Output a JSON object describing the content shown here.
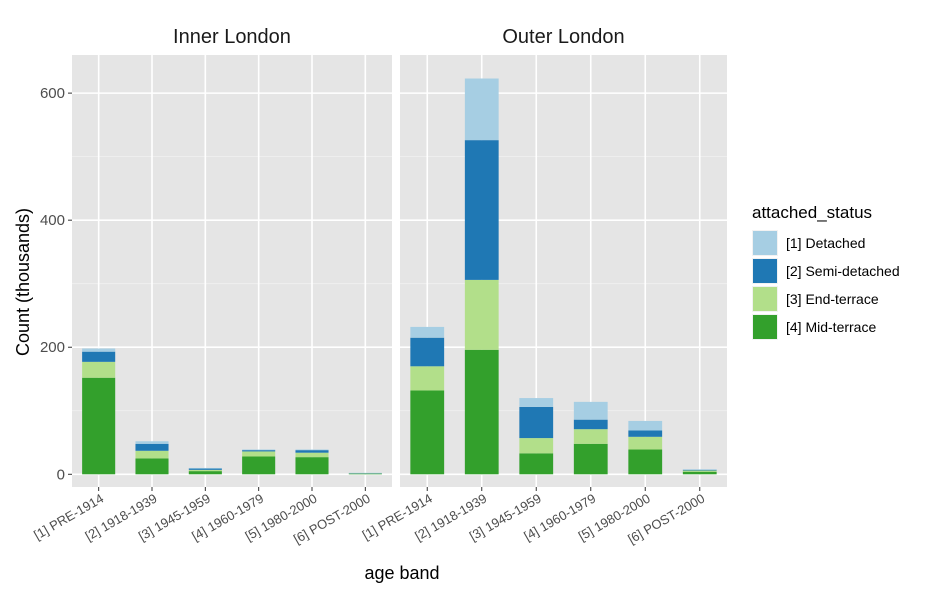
{
  "chart_data": {
    "type": "bar",
    "stacked": true,
    "facets": [
      "Inner London",
      "Outer London"
    ],
    "categories": [
      "[1] PRE-1914",
      "[2] 1918-1939",
      "[3] 1945-1959",
      "[4] 1960-1979",
      "[5] 1980-2000",
      "[6] POST-2000"
    ],
    "xlabel": "age band",
    "ylabel": "Count (thousands)",
    "ylim": [
      -20,
      660
    ],
    "yticks": [
      0,
      200,
      400,
      600
    ],
    "grid": true,
    "legend": {
      "title": "attached_status",
      "placement": "right"
    },
    "series": [
      {
        "name": "[4] Mid-terrace",
        "color": "#33a02c",
        "values": {
          "Inner London": [
            152,
            25,
            5,
            28,
            27,
            1
          ],
          "Outer London": [
            132,
            196,
            33,
            48,
            39,
            4
          ]
        }
      },
      {
        "name": "[3] End-terrace",
        "color": "#b2df8a",
        "values": {
          "Inner London": [
            25,
            12,
            2,
            8,
            7,
            0.5
          ],
          "Outer London": [
            38,
            110,
            24,
            23,
            20,
            2
          ]
        }
      },
      {
        "name": "[2] Semi-detached",
        "color": "#1f78b4",
        "values": {
          "Inner London": [
            16,
            11,
            2,
            2,
            4,
            0.5
          ],
          "Outer London": [
            45,
            220,
            49,
            15,
            10,
            1
          ]
        }
      },
      {
        "name": "[1] Detached",
        "color": "#a6cee3",
        "values": {
          "Inner London": [
            5,
            4,
            1,
            1,
            1,
            0.3
          ],
          "Outer London": [
            17,
            97,
            14,
            28,
            15,
            1
          ]
        }
      }
    ]
  }
}
